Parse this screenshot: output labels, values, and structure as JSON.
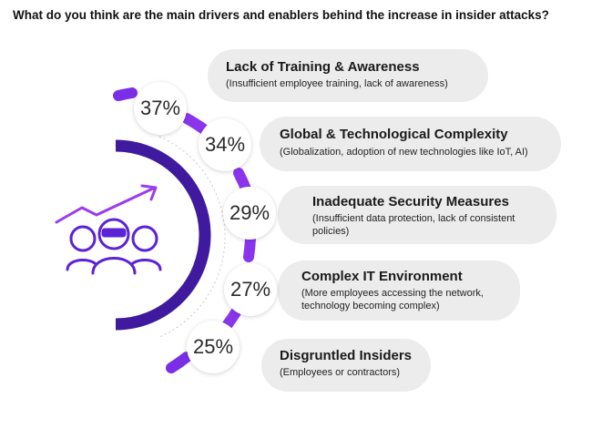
{
  "title": "What do you think are the main drivers and enablers behind the increase in insider attacks?",
  "colors": {
    "purple": "#5b22d6",
    "dark_purple": "#3f1a9e",
    "bright_purple": "#9a3cf0",
    "pill_bg": "#ececec"
  },
  "chart_data": {
    "type": "bar",
    "title": "What do you think are the main drivers and enablers behind the increase in insider attacks?",
    "categories": [
      "Lack of Training & Awareness",
      "Global & Technological Complexity",
      "Inadequate Security Measures",
      "Complex IT Environment",
      "Disgruntled Insiders"
    ],
    "descriptions": [
      "(Insufficient employee training, lack of awareness)",
      "(Globalization, adoption of new technologies like IoT, AI)",
      "(Insufficient data protection, lack of consistent policies)",
      "(More employees accessing the network, technology becoming complex)",
      "(Employees or contractors)"
    ],
    "values": [
      37,
      34,
      29,
      27,
      25
    ],
    "value_labels": [
      "37%",
      "34%",
      "29%",
      "27%",
      "25%"
    ],
    "unit": "%"
  },
  "icons": [
    "insider-group-icon",
    "trend-arrow-icon"
  ]
}
